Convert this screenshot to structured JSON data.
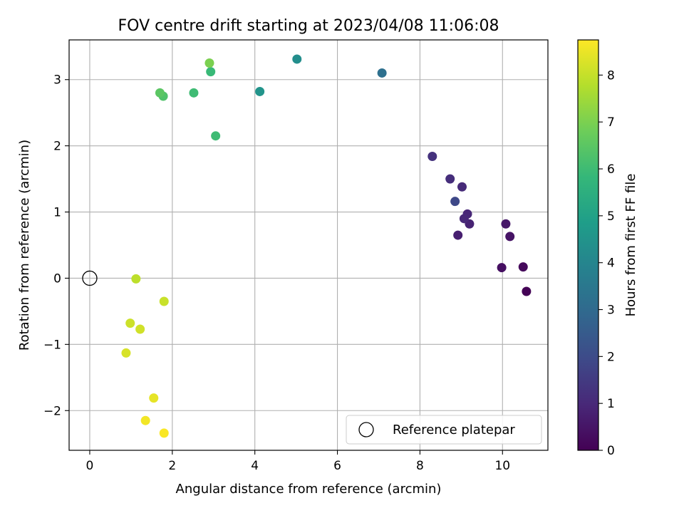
{
  "chart_data": {
    "type": "scatter",
    "title": "FOV centre drift starting at 2023/04/08 11:06:08",
    "xlabel": "Angular distance from reference (arcmin)",
    "ylabel": "Rotation from reference (arcmin)",
    "xlim": [
      -0.5,
      11.1
    ],
    "ylim": [
      -2.6,
      3.6
    ],
    "xticks": [
      0,
      2,
      4,
      6,
      8,
      10
    ],
    "xtick_labels": [
      "0",
      "2",
      "4",
      "6",
      "8",
      "10"
    ],
    "yticks": [
      -2,
      -1,
      0,
      1,
      2,
      3
    ],
    "ytick_labels": [
      "−2",
      "−1",
      "0",
      "1",
      "2",
      "3"
    ],
    "grid": true,
    "legend": {
      "placement": "lower-right",
      "entries": [
        "Reference platepar"
      ]
    },
    "reference_point": {
      "x": 0,
      "y": 0
    },
    "colorbar": {
      "label": "Hours from first FF file",
      "colormap": "viridis",
      "min": 0,
      "max": 8.75,
      "ticks": [
        0,
        1,
        2,
        3,
        4,
        5,
        6,
        7,
        8
      ],
      "tick_labels": [
        "0",
        "1",
        "2",
        "3",
        "4",
        "5",
        "6",
        "7",
        "8"
      ]
    },
    "points": [
      {
        "x": 10.58,
        "y": -0.2,
        "hours": 0.05
      },
      {
        "x": 10.5,
        "y": 0.17,
        "hours": 0.2
      },
      {
        "x": 9.98,
        "y": 0.16,
        "hours": 0.35
      },
      {
        "x": 10.18,
        "y": 0.63,
        "hours": 0.45
      },
      {
        "x": 10.08,
        "y": 0.82,
        "hours": 0.55
      },
      {
        "x": 8.92,
        "y": 0.65,
        "hours": 0.75
      },
      {
        "x": 9.2,
        "y": 0.82,
        "hours": 0.85
      },
      {
        "x": 9.15,
        "y": 0.97,
        "hours": 0.95
      },
      {
        "x": 9.07,
        "y": 0.9,
        "hours": 1.0
      },
      {
        "x": 9.02,
        "y": 1.38,
        "hours": 1.05
      },
      {
        "x": 8.73,
        "y": 1.5,
        "hours": 1.15
      },
      {
        "x": 8.3,
        "y": 1.84,
        "hours": 1.25
      },
      {
        "x": 8.85,
        "y": 1.16,
        "hours": 1.9
      },
      {
        "x": 7.08,
        "y": 3.1,
        "hours": 3.2
      },
      {
        "x": 5.02,
        "y": 3.31,
        "hours": 4.3
      },
      {
        "x": 4.12,
        "y": 2.82,
        "hours": 4.5
      },
      {
        "x": 2.93,
        "y": 3.12,
        "hours": 5.9
      },
      {
        "x": 3.05,
        "y": 2.15,
        "hours": 6.0
      },
      {
        "x": 2.52,
        "y": 2.8,
        "hours": 6.0
      },
      {
        "x": 1.78,
        "y": 2.75,
        "hours": 6.3
      },
      {
        "x": 1.7,
        "y": 2.8,
        "hours": 6.5
      },
      {
        "x": 2.9,
        "y": 3.25,
        "hours": 7.0
      },
      {
        "x": 1.12,
        "y": -0.01,
        "hours": 7.9
      },
      {
        "x": 1.8,
        "y": -0.35,
        "hours": 8.05
      },
      {
        "x": 0.98,
        "y": -0.68,
        "hours": 8.1
      },
      {
        "x": 1.22,
        "y": -0.77,
        "hours": 8.15
      },
      {
        "x": 0.88,
        "y": -1.13,
        "hours": 8.25
      },
      {
        "x": 1.55,
        "y": -1.81,
        "hours": 8.45
      },
      {
        "x": 1.35,
        "y": -2.15,
        "hours": 8.6
      },
      {
        "x": 1.8,
        "y": -2.34,
        "hours": 8.7
      }
    ]
  }
}
